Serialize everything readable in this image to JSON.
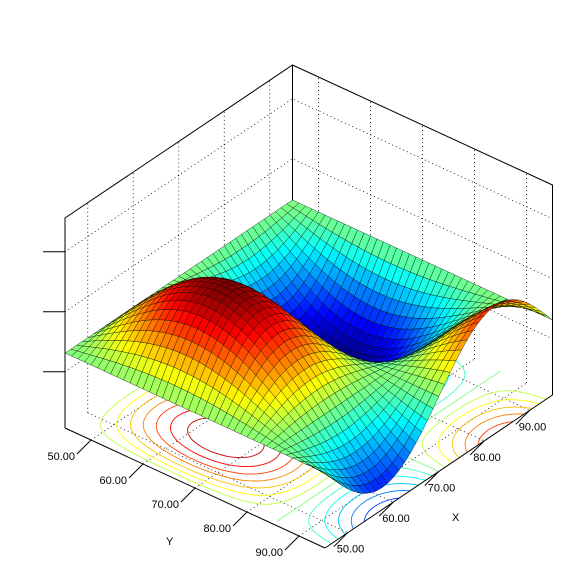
{
  "chart_data": {
    "type": "surface3d",
    "title": "",
    "xlabel": "X",
    "ylabel": "Y",
    "zlabel": "",
    "x_ticks": [
      "50.00",
      "60.00",
      "70.00",
      "80.00",
      "90.00"
    ],
    "y_ticks": [
      "50.00",
      "60.00",
      "70.00",
      "80.00",
      "90.00"
    ],
    "xlim": [
      45,
      95
    ],
    "ylim": [
      45,
      95
    ],
    "zlim": [
      -1,
      1
    ],
    "grid": true,
    "colormap": "jet",
    "contour_projection": true,
    "surface": "z = sin(pi*(x-45)/25) * sin(pi*(y-45)/40)"
  }
}
